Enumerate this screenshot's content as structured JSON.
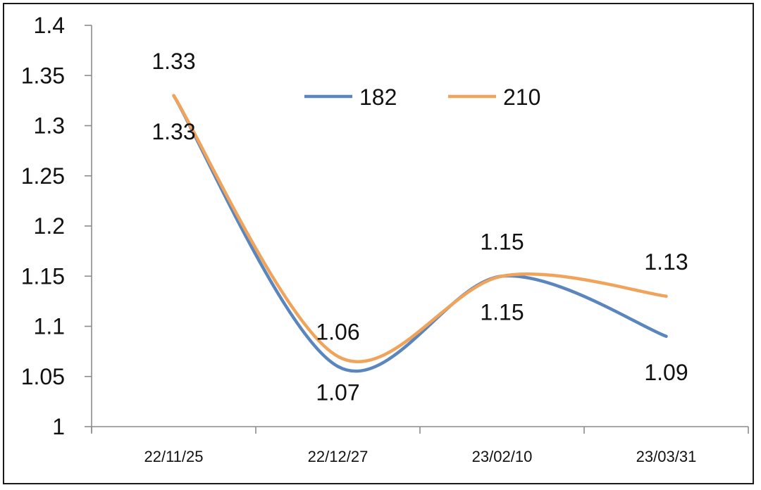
{
  "chart_data": {
    "type": "line",
    "title": "",
    "xlabel": "",
    "ylabel": "",
    "categories": [
      "22/11/25",
      "22/12/27",
      "23/02/10",
      "23/03/31"
    ],
    "ylim": [
      1,
      1.4
    ],
    "yticks": [
      "1",
      "1.05",
      "1.1",
      "1.15",
      "1.2",
      "1.25",
      "1.3",
      "1.35",
      "1.4"
    ],
    "grid": false,
    "legend_position": "top-center",
    "series": [
      {
        "name": "182",
        "color": "#5b86bd",
        "values": [
          1.33,
          1.06,
          1.15,
          1.09
        ],
        "labels": [
          "1.33",
          "1.06",
          "1.15",
          "1.09"
        ],
        "label_placement": [
          "below",
          "above",
          "below",
          "below"
        ]
      },
      {
        "name": "210",
        "color": "#f0a35a",
        "values": [
          1.33,
          1.07,
          1.15,
          1.13
        ],
        "labels": [
          "1.33",
          "1.07",
          "1.15",
          "1.13"
        ],
        "label_placement": [
          "above",
          "below",
          "above",
          "above"
        ]
      }
    ]
  }
}
